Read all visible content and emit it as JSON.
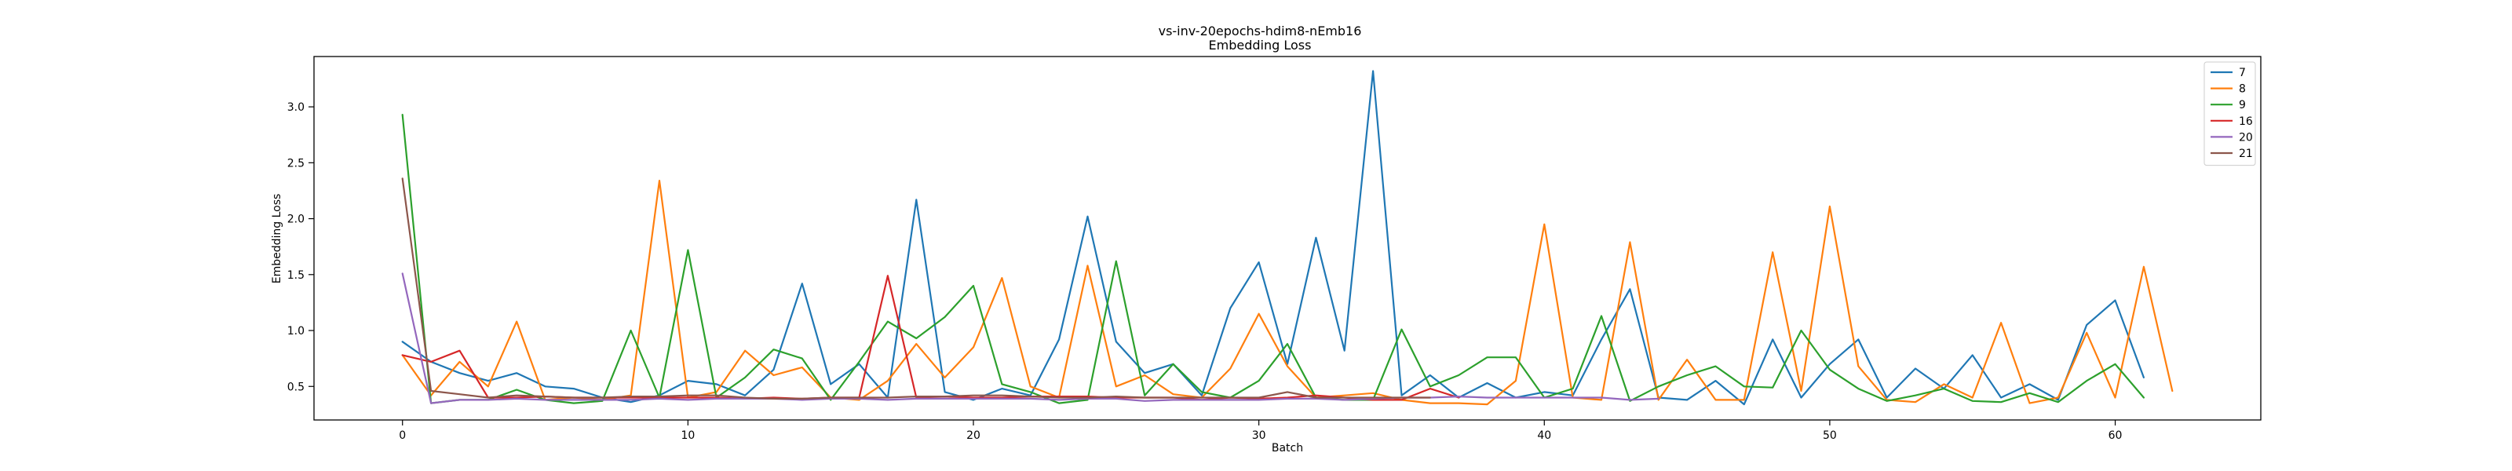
{
  "chart_data": {
    "type": "line",
    "title": "vs-inv-20epochs-hdim8-nEmb16",
    "subtitle": "Embedding Loss",
    "xlabel": "Batch",
    "ylabel": "Embedding Loss",
    "xlim": [
      -3.1,
      65.1
    ],
    "ylim": [
      0.2,
      3.45
    ],
    "xticks": [
      0,
      10,
      20,
      30,
      40,
      50,
      60
    ],
    "yticks": [
      0.5,
      1.0,
      1.5,
      2.0,
      2.5,
      3.0
    ],
    "xtick_labels": [
      "0",
      "10",
      "20",
      "30",
      "40",
      "50",
      "60"
    ],
    "ytick_labels": [
      "0.5",
      "1.0",
      "1.5",
      "2.0",
      "2.5",
      "3.0"
    ],
    "grid": false,
    "legend_position": "top-right",
    "series": [
      {
        "name": "7",
        "color": "#1f77b4",
        "values": [
          0.9,
          0.72,
          0.62,
          0.55,
          0.62,
          0.5,
          0.48,
          0.4,
          0.36,
          0.42,
          0.55,
          0.52,
          0.42,
          0.65,
          1.42,
          0.52,
          0.7,
          0.4,
          2.17,
          0.45,
          0.38,
          0.48,
          0.42,
          0.92,
          2.02,
          0.9,
          0.62,
          0.7,
          0.42,
          1.2,
          1.61,
          0.7,
          1.83,
          0.82,
          3.32,
          0.42,
          0.6,
          0.4,
          0.53,
          0.4,
          0.45,
          0.42,
          0.92,
          1.37,
          0.4,
          0.38,
          0.55,
          0.34,
          0.92,
          0.4,
          0.7,
          0.92,
          0.4,
          0.66,
          0.48,
          0.78,
          0.4,
          0.52,
          0.38,
          1.05,
          1.27,
          0.58
        ]
      },
      {
        "name": "8",
        "color": "#ff7f0e",
        "values": [
          0.78,
          0.42,
          0.72,
          0.5,
          1.08,
          0.38,
          0.4,
          0.38,
          0.42,
          2.34,
          0.4,
          0.45,
          0.82,
          0.6,
          0.67,
          0.4,
          0.38,
          0.55,
          0.88,
          0.58,
          0.85,
          1.47,
          0.5,
          0.4,
          1.58,
          0.5,
          0.6,
          0.43,
          0.4,
          0.66,
          1.15,
          0.68,
          0.4,
          0.42,
          0.44,
          0.38,
          0.35,
          0.35,
          0.34,
          0.55,
          1.95,
          0.4,
          0.38,
          1.79,
          0.38,
          0.74,
          0.38,
          0.38,
          1.7,
          0.46,
          2.11,
          0.68,
          0.38,
          0.36,
          0.52,
          0.4,
          1.07,
          0.35,
          0.4,
          0.98,
          0.4,
          1.57,
          0.46
        ]
      },
      {
        "name": "9",
        "color": "#2ca02c",
        "values": [
          2.93,
          0.35,
          0.38,
          0.38,
          0.47,
          0.38,
          0.35,
          0.37,
          1.0,
          0.4,
          1.72,
          0.4,
          0.58,
          0.83,
          0.75,
          0.38,
          0.72,
          1.08,
          0.93,
          1.12,
          1.4,
          0.52,
          0.45,
          0.35,
          0.38,
          1.62,
          0.42,
          0.7,
          0.45,
          0.4,
          0.55,
          0.88,
          0.4,
          0.38,
          0.38,
          1.01,
          0.5,
          0.6,
          0.76,
          0.76,
          0.4,
          0.48,
          1.13,
          0.37,
          0.5,
          0.6,
          0.68,
          0.5,
          0.49,
          1.0,
          0.65,
          0.48,
          0.37,
          0.42,
          0.48,
          0.37,
          0.36,
          0.44,
          0.36,
          0.55,
          0.7,
          0.4
        ]
      },
      {
        "name": "16",
        "color": "#d62728",
        "values": [
          0.78,
          0.72,
          0.82,
          0.4,
          0.4,
          0.41,
          0.4,
          0.4,
          0.4,
          0.4,
          0.4,
          0.4,
          0.39,
          0.4,
          0.39,
          0.4,
          0.4,
          1.49,
          0.4,
          0.41,
          0.4,
          0.4,
          0.41,
          0.41,
          0.41,
          0.4,
          0.4,
          0.4,
          0.38,
          0.4,
          0.39,
          0.4,
          0.42,
          0.4,
          0.38,
          0.38,
          0.48,
          0.4
        ]
      },
      {
        "name": "20",
        "color": "#9467bd",
        "values": [
          1.51,
          0.35,
          0.38,
          0.38,
          0.39,
          0.38,
          0.38,
          0.38,
          0.38,
          0.39,
          0.38,
          0.39,
          0.39,
          0.39,
          0.38,
          0.39,
          0.39,
          0.38,
          0.39,
          0.39,
          0.39,
          0.39,
          0.39,
          0.38,
          0.39,
          0.39,
          0.37,
          0.38,
          0.38,
          0.38,
          0.38,
          0.39,
          0.39,
          0.38,
          0.39,
          0.4,
          0.4,
          0.41,
          0.4,
          0.4,
          0.4,
          0.4,
          0.4,
          0.38,
          0.39
        ]
      },
      {
        "name": "21",
        "color": "#8c564b",
        "values": [
          2.36,
          0.46,
          0.43,
          0.4,
          0.42,
          0.41,
          0.4,
          0.4,
          0.41,
          0.41,
          0.42,
          0.42,
          0.4,
          0.39,
          0.39,
          0.4,
          0.4,
          0.4,
          0.41,
          0.41,
          0.42,
          0.42,
          0.41,
          0.4,
          0.4,
          0.41,
          0.4,
          0.4,
          0.4,
          0.4,
          0.4,
          0.45,
          0.4,
          0.4,
          0.4,
          0.4,
          0.4
        ]
      }
    ]
  }
}
